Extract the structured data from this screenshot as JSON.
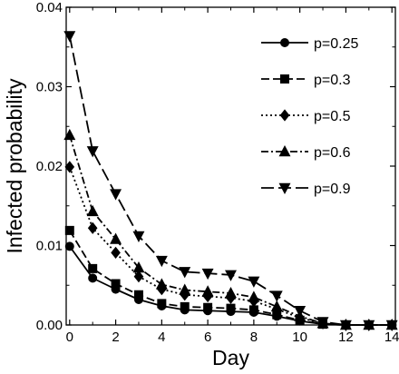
{
  "chart_data": {
    "type": "line",
    "title": "",
    "xlabel": "Day",
    "ylabel": "Infected probability",
    "xlim": [
      -0.15,
      14.15
    ],
    "ylim": [
      0,
      0.04
    ],
    "xticks": [
      0,
      2,
      4,
      6,
      8,
      10,
      12,
      14
    ],
    "yticks": [
      0.0,
      0.01,
      0.02,
      0.03,
      0.04
    ],
    "xtick_labels": [
      "0",
      "2",
      "4",
      "6",
      "8",
      "10",
      "12",
      "14"
    ],
    "ytick_labels": [
      "0.00",
      "0.01",
      "0.02",
      "0.03",
      "0.04"
    ],
    "grid": false,
    "legend_position": "top-right",
    "series": [
      {
        "name": "p=0.25",
        "marker": "circle",
        "dash": "solid",
        "x": [
          0,
          1,
          2,
          3,
          4,
          5,
          6,
          7,
          8,
          9,
          10,
          11,
          12,
          13,
          14
        ],
        "y": [
          0.0099,
          0.0059,
          0.0045,
          0.0032,
          0.0024,
          0.0019,
          0.0018,
          0.0017,
          0.0016,
          0.0011,
          0.0005,
          0.0001,
          0.0,
          0.0,
          0.0
        ]
      },
      {
        "name": "p=0.3",
        "marker": "square",
        "dash": "dashed",
        "x": [
          0,
          1,
          2,
          3,
          4,
          5,
          6,
          7,
          8,
          9,
          10,
          11,
          12,
          13,
          14
        ],
        "y": [
          0.0119,
          0.0071,
          0.0052,
          0.0038,
          0.0027,
          0.0023,
          0.0022,
          0.0021,
          0.0019,
          0.0013,
          0.0006,
          0.0001,
          0.0,
          0.0,
          0.0
        ]
      },
      {
        "name": "p=0.5",
        "marker": "diamond",
        "dash": "dotted",
        "x": [
          0,
          1,
          2,
          3,
          4,
          5,
          6,
          7,
          8,
          9,
          10,
          11,
          12,
          13,
          14
        ],
        "y": [
          0.0199,
          0.0122,
          0.0091,
          0.0061,
          0.0045,
          0.0038,
          0.0036,
          0.0034,
          0.003,
          0.002,
          0.0009,
          0.0002,
          0.0,
          0.0,
          0.0
        ]
      },
      {
        "name": "p=0.6",
        "marker": "triangle-up",
        "dash": "dashdot",
        "x": [
          0,
          1,
          2,
          3,
          4,
          5,
          6,
          7,
          8,
          9,
          10,
          11,
          12,
          13,
          14
        ],
        "y": [
          0.0239,
          0.0143,
          0.0108,
          0.0072,
          0.0051,
          0.0044,
          0.0042,
          0.004,
          0.0035,
          0.0023,
          0.0011,
          0.0002,
          0.0,
          0.0,
          0.0
        ]
      },
      {
        "name": "p=0.9",
        "marker": "triangle-down",
        "dash": "longdash",
        "x": [
          0,
          1,
          2,
          3,
          4,
          5,
          6,
          7,
          8,
          9,
          10,
          11,
          12,
          13,
          14
        ],
        "y": [
          0.0364,
          0.0219,
          0.0165,
          0.0112,
          0.0081,
          0.0067,
          0.0065,
          0.0063,
          0.0055,
          0.0037,
          0.0018,
          0.0004,
          0.0,
          0.0,
          0.0
        ]
      }
    ]
  }
}
